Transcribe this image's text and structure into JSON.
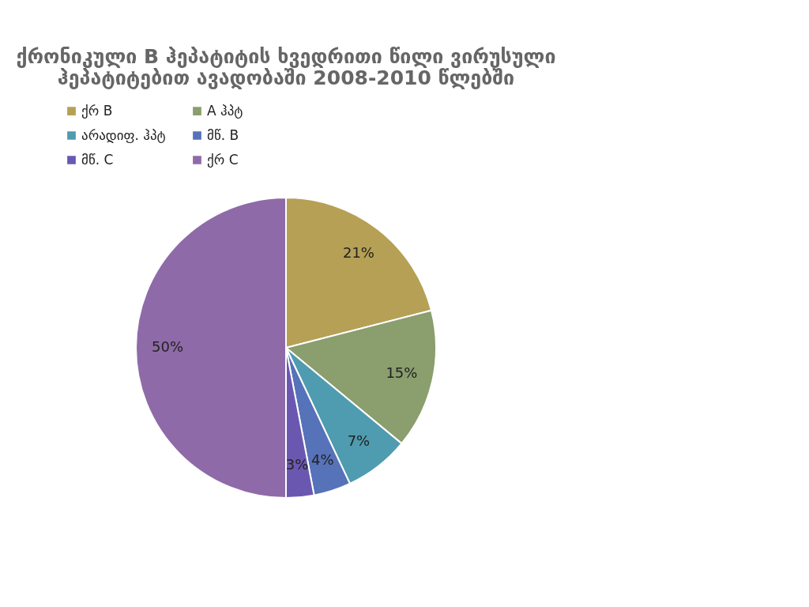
{
  "chart_data": {
    "type": "pie",
    "title": "ქრონიკული B ჰეპატიტის ხვედრითი წილი ვირუსული\nჰეპატიტებით ავადობაში 2008-2010 წლებში",
    "categories": [
      "ქრ B",
      "A ჰპტ",
      "არადიფ. ჰპტ",
      "მწ. B",
      "მწ. C",
      "ქრ C"
    ],
    "values": [
      21,
      15,
      7,
      4,
      3,
      50
    ],
    "colors": [
      "#b5a055",
      "#8a9e6e",
      "#4f9bb0",
      "#5672b8",
      "#6a58b0",
      "#8f6aa8"
    ],
    "value_labels": [
      "21%",
      "15%",
      "7%",
      "4%",
      "3%",
      "50%"
    ],
    "legend": "top"
  }
}
